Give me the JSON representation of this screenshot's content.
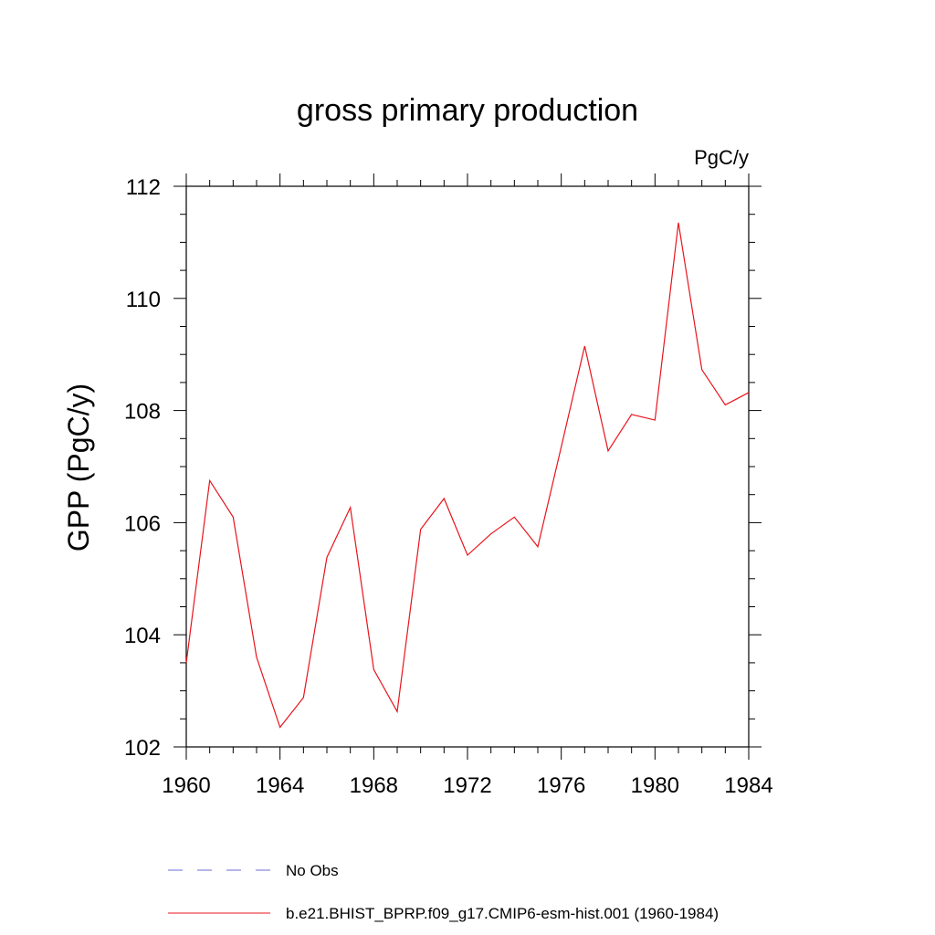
{
  "chart_data": {
    "type": "line",
    "title": "gross primary production",
    "units_label": "PgC/y",
    "xlabel": "",
    "ylabel": "GPP  (PgC/y)",
    "xlim": [
      1960,
      1984
    ],
    "ylim": [
      102,
      112
    ],
    "x_ticks": [
      1960,
      1964,
      1968,
      1972,
      1976,
      1980,
      1984
    ],
    "y_ticks": [
      102,
      104,
      106,
      108,
      110,
      112
    ],
    "grid": false,
    "legend_position": "bottom",
    "series": [
      {
        "name": "b.e21.BHIST_BPRP.f09_g17.CMIP6-esm-hist.001 (1960-1984)",
        "color": "#e8141c",
        "style": "solid",
        "x": [
          1960,
          1961,
          1962,
          1963,
          1964,
          1965,
          1966,
          1967,
          1968,
          1969,
          1970,
          1971,
          1972,
          1973,
          1974,
          1975,
          1976,
          1977,
          1978,
          1979,
          1980,
          1981,
          1982,
          1983,
          1984
        ],
        "y": [
          103.5,
          106.75,
          106.1,
          103.6,
          102.35,
          102.88,
          105.38,
          106.27,
          103.38,
          102.63,
          105.88,
          106.43,
          105.42,
          105.8,
          106.1,
          105.57,
          107.35,
          109.15,
          107.28,
          107.93,
          107.83,
          111.35,
          108.73,
          108.1,
          108.32
        ]
      }
    ],
    "legend": [
      {
        "label": "No Obs",
        "color": "#6b6bd6",
        "style": "dashed"
      },
      {
        "label": "b.e21.BHIST_BPRP.f09_g17.CMIP6-esm-hist.001 (1960-1984)",
        "color": "#e8141c",
        "style": "solid"
      }
    ]
  }
}
